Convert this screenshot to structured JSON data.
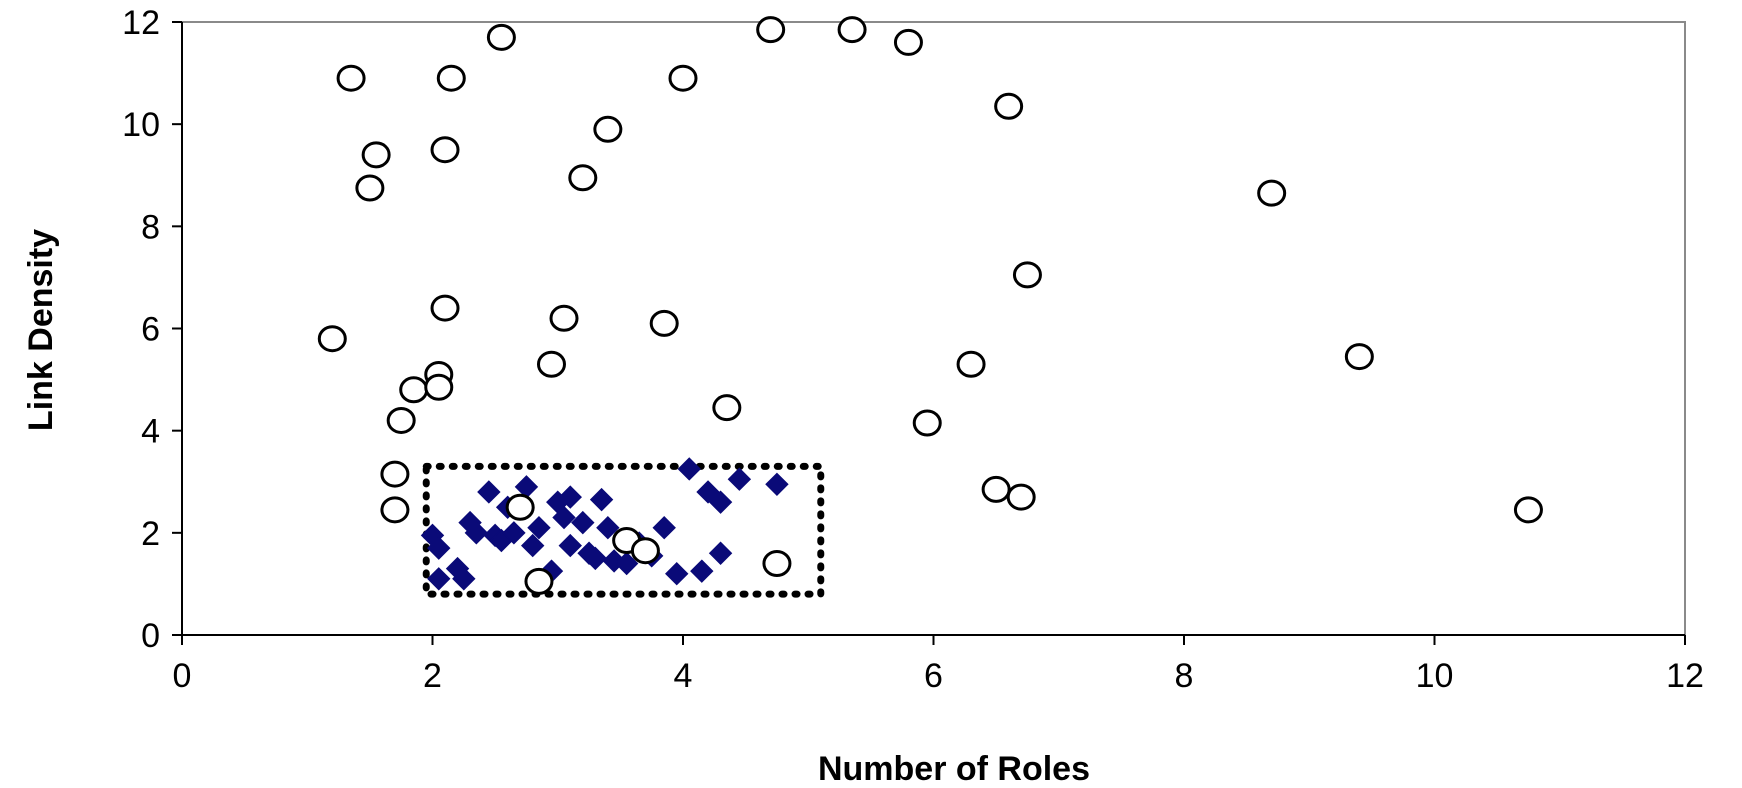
{
  "chart_data": {
    "type": "scatter",
    "title": "",
    "xlabel": "Number of Roles",
    "ylabel": "Link Density",
    "xlim": [
      0,
      12
    ],
    "ylim": [
      0,
      12
    ],
    "x_ticks": [
      "0",
      "2",
      "4",
      "6",
      "8",
      "10",
      "12"
    ],
    "y_ticks": [
      "0",
      "2",
      "4",
      "6",
      "8",
      "10",
      "12"
    ],
    "grid": false,
    "legend": "none",
    "series": [
      {
        "marker": "open-circle",
        "color": "#000000",
        "points": [
          [
            1.2,
            5.8
          ],
          [
            1.35,
            10.9
          ],
          [
            1.5,
            8.75
          ],
          [
            1.55,
            9.4
          ],
          [
            1.7,
            3.15
          ],
          [
            1.7,
            2.45
          ],
          [
            1.75,
            4.2
          ],
          [
            1.85,
            4.8
          ],
          [
            2.05,
            5.1
          ],
          [
            2.05,
            4.85
          ],
          [
            2.1,
            6.4
          ],
          [
            2.1,
            9.5
          ],
          [
            2.15,
            10.9
          ],
          [
            2.55,
            11.7
          ],
          [
            2.7,
            2.5
          ],
          [
            2.85,
            1.05
          ],
          [
            2.95,
            5.3
          ],
          [
            3.05,
            6.2
          ],
          [
            3.2,
            8.95
          ],
          [
            3.4,
            9.9
          ],
          [
            3.55,
            1.85
          ],
          [
            3.7,
            1.65
          ],
          [
            3.85,
            6.1
          ],
          [
            4.0,
            10.9
          ],
          [
            4.35,
            4.45
          ],
          [
            4.7,
            11.85
          ],
          [
            4.75,
            1.4
          ],
          [
            5.35,
            11.85
          ],
          [
            5.8,
            11.6
          ],
          [
            5.95,
            4.15
          ],
          [
            6.3,
            5.3
          ],
          [
            6.5,
            2.85
          ],
          [
            6.6,
            10.35
          ],
          [
            6.7,
            2.7
          ],
          [
            6.75,
            7.05
          ],
          [
            8.7,
            8.65
          ],
          [
            9.4,
            5.45
          ],
          [
            10.75,
            2.45
          ]
        ]
      },
      {
        "marker": "filled-diamond",
        "color": "#0a0a78",
        "points": [
          [
            2.0,
            1.95
          ],
          [
            2.05,
            1.7
          ],
          [
            2.05,
            1.1
          ],
          [
            2.2,
            1.3
          ],
          [
            2.25,
            1.1
          ],
          [
            2.3,
            2.2
          ],
          [
            2.35,
            2.0
          ],
          [
            2.45,
            2.8
          ],
          [
            2.5,
            1.95
          ],
          [
            2.55,
            1.85
          ],
          [
            2.6,
            2.5
          ],
          [
            2.65,
            2.0
          ],
          [
            2.75,
            2.9
          ],
          [
            2.8,
            1.75
          ],
          [
            2.85,
            2.1
          ],
          [
            2.95,
            1.25
          ],
          [
            3.0,
            2.6
          ],
          [
            3.05,
            2.3
          ],
          [
            3.1,
            2.7
          ],
          [
            3.1,
            1.75
          ],
          [
            3.2,
            2.2
          ],
          [
            3.25,
            1.6
          ],
          [
            3.3,
            1.5
          ],
          [
            3.35,
            2.65
          ],
          [
            3.4,
            2.1
          ],
          [
            3.45,
            1.45
          ],
          [
            3.55,
            1.4
          ],
          [
            3.65,
            1.8
          ],
          [
            3.75,
            1.55
          ],
          [
            3.85,
            2.1
          ],
          [
            3.95,
            1.2
          ],
          [
            4.05,
            3.25
          ],
          [
            4.15,
            1.25
          ],
          [
            4.2,
            2.8
          ],
          [
            4.3,
            2.6
          ],
          [
            4.3,
            1.6
          ],
          [
            4.45,
            3.05
          ],
          [
            4.75,
            2.95
          ]
        ]
      }
    ],
    "annotations": [
      {
        "type": "dotted-rectangle",
        "x_range": [
          1.95,
          5.1
        ],
        "y_range": [
          0.8,
          3.3
        ]
      }
    ]
  }
}
